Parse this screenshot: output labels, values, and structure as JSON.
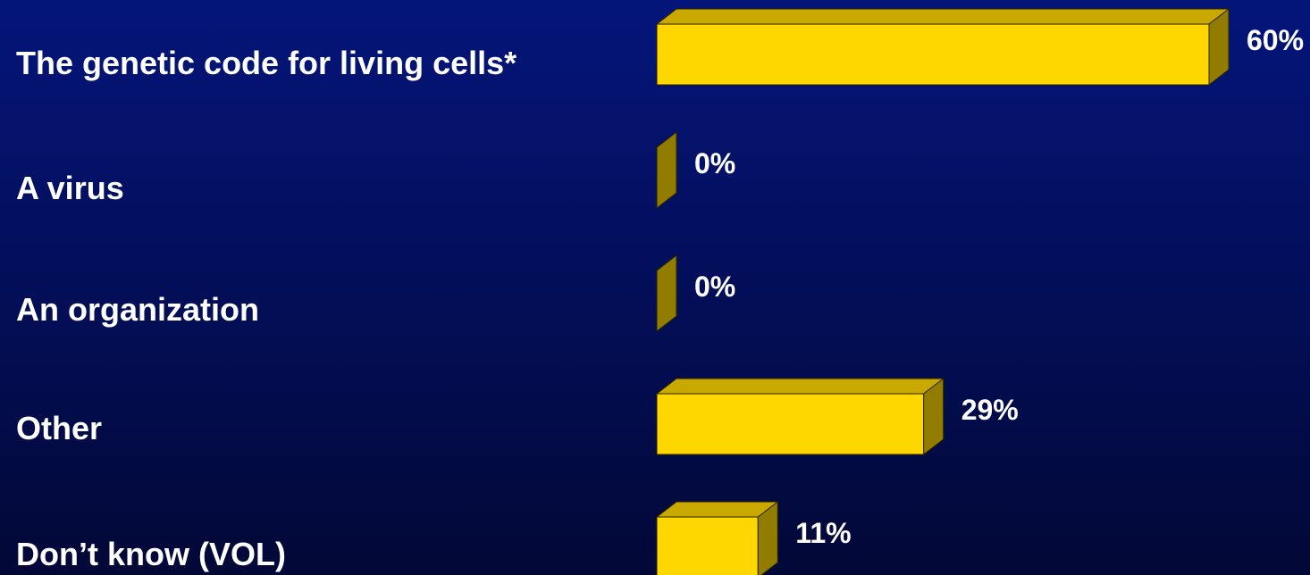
{
  "chart_data": {
    "type": "bar",
    "orientation": "horizontal",
    "categories": [
      "The genetic code for living cells*",
      "A virus",
      "An organization",
      "Other",
      "Don’t know (VOL)"
    ],
    "values": [
      60,
      0,
      0,
      29,
      11
    ],
    "value_labels": [
      "60%",
      "0%",
      "0%",
      "29%",
      "11%"
    ],
    "unit": "%",
    "title": "",
    "xlabel": "",
    "ylabel": "",
    "xlim": [
      0,
      60
    ],
    "grid": false,
    "legend": "none",
    "style": "3d-bar",
    "colors": {
      "bar_front": "#ffd700",
      "bar_top": "#c9a800",
      "bar_side": "#927c00",
      "bar_edge": "#2a2400",
      "text": "#ffffff",
      "background_top": "#04157a",
      "background_bottom": "#020836"
    }
  }
}
